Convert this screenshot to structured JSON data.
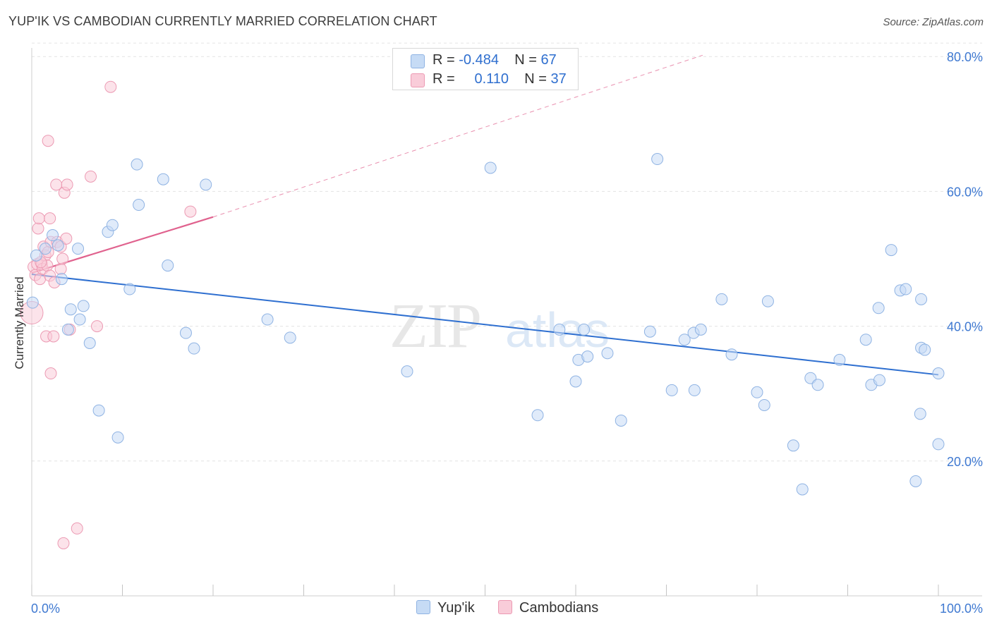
{
  "title": "YUP'IK VS CAMBODIAN CURRENTLY MARRIED CORRELATION CHART",
  "source": "Source: ZipAtlas.com",
  "watermark": {
    "zip": "ZIP",
    "atlas": "atlas"
  },
  "legend": {
    "r_label": "R =",
    "n_label": "N =",
    "yupik": {
      "r": "-0.484",
      "n": "67"
    },
    "cambodian": {
      "r": "0.110",
      "n": "37"
    }
  },
  "bottom_legend": {
    "yupik": "Yup'ik",
    "cambodian": "Cambodians"
  },
  "colors": {
    "yupik_fill": "#c6dbf5",
    "yupik_stroke": "#8fb3e3",
    "yupik_line": "#2e6fd0",
    "cambodian_fill": "#f9ccd9",
    "cambodian_stroke": "#ec9ab3",
    "cambodian_line": "#e0628e",
    "axis_text": "#3f79d1",
    "grid": "#e3e3e3"
  },
  "chart_data": {
    "type": "scatter",
    "title": "YUP'IK VS CAMBODIAN CURRENTLY MARRIED CORRELATION CHART",
    "xlabel": "",
    "ylabel": "Currently Married",
    "xlim": [
      0,
      100
    ],
    "ylim": [
      0,
      82
    ],
    "x_tick_labels": [
      "0.0%",
      "100.0%"
    ],
    "y_ticks": [
      20,
      40,
      60,
      80
    ],
    "y_tick_labels": [
      "20.0%",
      "40.0%",
      "60.0%",
      "80.0%"
    ],
    "grid": true,
    "series": [
      {
        "name": "Yup'ik",
        "r": -0.484,
        "n": 67,
        "trend": {
          "x0": 0,
          "y0": 47.7,
          "x1": 100,
          "y1": 32.8,
          "style": "solid"
        },
        "points": [
          [
            0.1,
            43.5
          ],
          [
            0.5,
            50.5
          ],
          [
            1.5,
            51.5
          ],
          [
            2.3,
            53.5
          ],
          [
            2.9,
            52.0
          ],
          [
            3.3,
            47.0
          ],
          [
            4.0,
            39.5
          ],
          [
            4.3,
            42.5
          ],
          [
            5.1,
            51.5
          ],
          [
            5.3,
            41.0
          ],
          [
            5.7,
            43.0
          ],
          [
            6.4,
            37.5
          ],
          [
            7.4,
            27.5
          ],
          [
            8.4,
            54.0
          ],
          [
            8.9,
            55.0
          ],
          [
            9.5,
            23.5
          ],
          [
            10.8,
            45.5
          ],
          [
            11.6,
            64.0
          ],
          [
            11.8,
            58.0
          ],
          [
            14.5,
            61.8
          ],
          [
            15.0,
            49.0
          ],
          [
            17.0,
            39.0
          ],
          [
            17.9,
            36.7
          ],
          [
            19.2,
            61.0
          ],
          [
            26.0,
            41.0
          ],
          [
            28.5,
            38.3
          ],
          [
            41.4,
            33.3
          ],
          [
            50.6,
            63.5
          ],
          [
            55.8,
            26.8
          ],
          [
            58.2,
            39.5
          ],
          [
            60.0,
            31.8
          ],
          [
            60.3,
            35.0
          ],
          [
            60.9,
            39.5
          ],
          [
            61.3,
            35.5
          ],
          [
            63.5,
            36.0
          ],
          [
            65.0,
            26.0
          ],
          [
            68.2,
            39.2
          ],
          [
            69.0,
            64.8
          ],
          [
            70.6,
            30.5
          ],
          [
            72.0,
            38.0
          ],
          [
            73.0,
            39.0
          ],
          [
            73.1,
            30.5
          ],
          [
            73.8,
            39.5
          ],
          [
            76.1,
            44.0
          ],
          [
            77.2,
            35.8
          ],
          [
            80.0,
            30.2
          ],
          [
            80.8,
            28.3
          ],
          [
            81.2,
            43.7
          ],
          [
            84.0,
            22.3
          ],
          [
            85.0,
            15.8
          ],
          [
            85.9,
            32.3
          ],
          [
            86.7,
            31.3
          ],
          [
            89.1,
            35.0
          ],
          [
            92.0,
            38.0
          ],
          [
            92.6,
            31.3
          ],
          [
            93.4,
            42.7
          ],
          [
            93.5,
            32.0
          ],
          [
            94.8,
            51.3
          ],
          [
            95.8,
            45.3
          ],
          [
            96.4,
            45.5
          ],
          [
            97.5,
            17.0
          ],
          [
            98.0,
            27.0
          ],
          [
            98.1,
            44.0
          ],
          [
            98.1,
            36.8
          ],
          [
            98.5,
            36.5
          ],
          [
            100.0,
            33.0
          ],
          [
            100.0,
            22.5
          ]
        ]
      },
      {
        "name": "Cambodians",
        "r": 0.11,
        "n": 37,
        "trend": {
          "x0": 0,
          "y0": 47.9,
          "x1": 20,
          "y1": 56.2,
          "style": "solid",
          "extension": {
            "x1": 74,
            "y1": 80.2,
            "style": "dashed"
          }
        },
        "points": [
          [
            0.0,
            42.0
          ],
          [
            0.2,
            48.8
          ],
          [
            0.4,
            47.6
          ],
          [
            0.6,
            49.2
          ],
          [
            0.7,
            54.5
          ],
          [
            0.8,
            56.0
          ],
          [
            0.9,
            47.0
          ],
          [
            1.1,
            49.2
          ],
          [
            1.2,
            48.5
          ],
          [
            1.3,
            51.8
          ],
          [
            1.5,
            50.5
          ],
          [
            1.6,
            38.5
          ],
          [
            1.7,
            49.0
          ],
          [
            1.8,
            67.5
          ],
          [
            1.8,
            51.0
          ],
          [
            2.0,
            56.0
          ],
          [
            2.0,
            47.5
          ],
          [
            2.1,
            52.5
          ],
          [
            2.1,
            33.0
          ],
          [
            2.4,
            38.5
          ],
          [
            2.5,
            46.5
          ],
          [
            2.7,
            61.0
          ],
          [
            2.8,
            52.5
          ],
          [
            3.2,
            51.8
          ],
          [
            3.2,
            48.5
          ],
          [
            3.4,
            50.0
          ],
          [
            3.5,
            7.8
          ],
          [
            3.6,
            59.8
          ],
          [
            3.8,
            53.0
          ],
          [
            3.9,
            61.0
          ],
          [
            4.2,
            39.5
          ],
          [
            5.0,
            10.0
          ],
          [
            6.5,
            62.2
          ],
          [
            7.2,
            40.0
          ],
          [
            8.7,
            75.5
          ],
          [
            17.5,
            57.0
          ],
          [
            1.0,
            49.5
          ]
        ]
      }
    ]
  }
}
